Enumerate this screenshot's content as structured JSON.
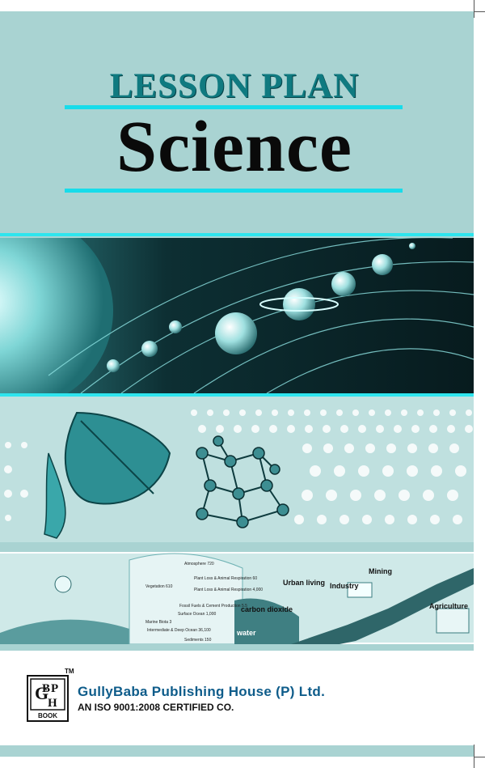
{
  "cover": {
    "series_title": "LESSON PLAN",
    "subject_title": "Science"
  },
  "illustration": {
    "labels": {
      "urban_living": "Urban living",
      "industry": "Industry",
      "mining": "Mining",
      "carbon_dioxide": "carbon dioxide",
      "water": "water",
      "agriculture": "Agriculture",
      "atmosphere": "Atmosphere 720",
      "vegetation": "Vegetation 610",
      "plant_loss": "Plant Loss & Animal Respiration 60",
      "respiration": "Plant Loss & Animal Respiration 4,000",
      "surface_ocean": "Surface Ocean 1,000",
      "fossil": "Fossil Fuels & Cement Production 5.5",
      "marine_biota": "Marine Biota 3",
      "intermediate_ocean": "Intermediate & Deep Ocean 36,100",
      "sediments": "Sediments 150"
    }
  },
  "publisher": {
    "logo_letters": [
      "G",
      "B",
      "H",
      "P"
    ],
    "logo_caption": "BOOK",
    "trademark": "TM",
    "name": "GullyBaba Publishing House (P) Ltd.",
    "certification": "AN ISO 9001:2008 CERTIFIED CO."
  },
  "colors": {
    "cover_bg": "#a9d3d2",
    "title_teal": "#0f7a80",
    "rule_cyan": "#18dcea",
    "publisher_blue": "#0e5c8a"
  }
}
